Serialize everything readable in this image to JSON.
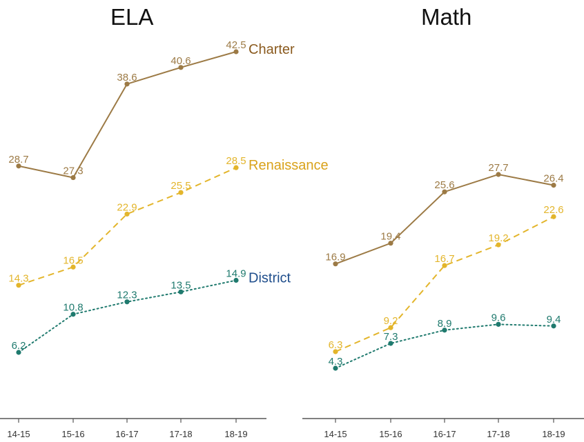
{
  "chart_data": [
    {
      "type": "line",
      "title": "ELA",
      "categories": [
        "14-15",
        "15-16",
        "16-17",
        "17-18",
        "18-19"
      ],
      "series": [
        {
          "name": "Charter",
          "values": [
            28.7,
            27.3,
            38.6,
            40.6,
            42.5
          ],
          "color": "#9c7a45",
          "style": "solid"
        },
        {
          "name": "Renaissance",
          "values": [
            14.3,
            16.5,
            22.9,
            25.5,
            28.5
          ],
          "color": "#e3b52b",
          "style": "dashed"
        },
        {
          "name": "District",
          "values": [
            6.2,
            10.8,
            12.3,
            13.5,
            14.9
          ],
          "color": "#1f7a6e",
          "style": "dotted"
        }
      ],
      "series_label_colors": {
        "Charter": "#8a5a1e",
        "Renaissance": "#d9a21a",
        "District": "#1f4e8c"
      }
    },
    {
      "type": "line",
      "title": "Math",
      "categories": [
        "14-15",
        "15-16",
        "16-17",
        "17-18",
        "18-19"
      ],
      "series": [
        {
          "name": "Charter",
          "values": [
            16.9,
            19.4,
            25.6,
            27.7,
            26.4
          ],
          "color": "#9c7a45",
          "style": "solid"
        },
        {
          "name": "Renaissance",
          "values": [
            6.3,
            9.2,
            16.7,
            19.2,
            22.6
          ],
          "color": "#e3b52b",
          "style": "dashed"
        },
        {
          "name": "District",
          "values": [
            4.3,
            7.3,
            8.9,
            9.6,
            9.4
          ],
          "color": "#1f7a6e",
          "style": "dotted"
        }
      ]
    }
  ]
}
